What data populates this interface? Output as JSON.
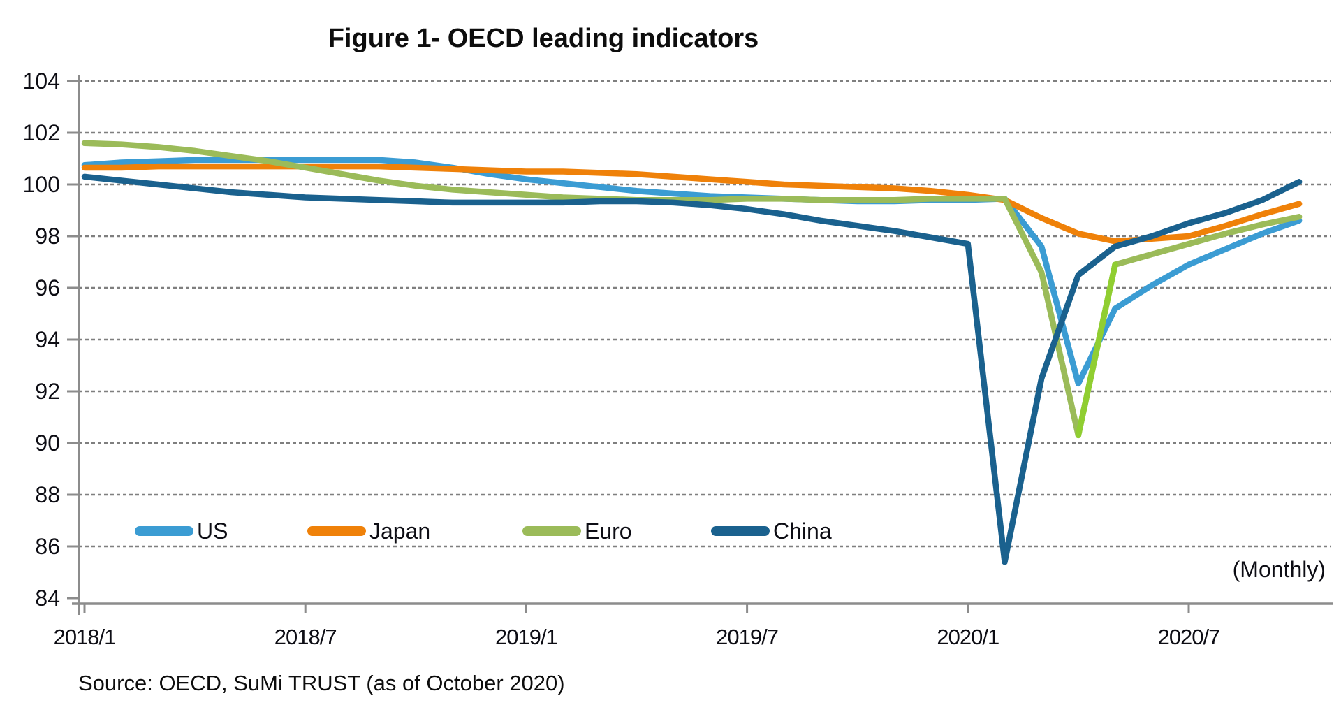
{
  "title": "Figure 1- OECD leading indicators",
  "monthly_note": "(Monthly)",
  "source": "Source: OECD, SuMi TRUST (as of October 2020)",
  "colors": {
    "axis": "#8c8c8c",
    "gridline": "#7f7f7f",
    "text": "#0d0d14",
    "us": "#3b9cd3",
    "japan": "#ef8109",
    "euro": "#9bbb59",
    "euro_recovery_segment": "#90ce31",
    "china": "#1a618e"
  },
  "chart_data": {
    "type": "line",
    "title": "Figure 1- OECD leading indicators",
    "xlabel": "",
    "ylabel": "",
    "ylim": [
      84,
      104
    ],
    "y_ticks": [
      84,
      86,
      88,
      90,
      92,
      94,
      96,
      98,
      100,
      102,
      104
    ],
    "x_tick_labels": [
      "2018/1",
      "2018/7",
      "2019/1",
      "2019/7",
      "2020/1",
      "2020/7"
    ],
    "grid": "horizontal-dashed",
    "legend_position": "inside-bottom-left",
    "x": [
      "2018/1",
      "2018/2",
      "2018/3",
      "2018/4",
      "2018/5",
      "2018/6",
      "2018/7",
      "2018/8",
      "2018/9",
      "2018/10",
      "2018/11",
      "2018/12",
      "2019/1",
      "2019/2",
      "2019/3",
      "2019/4",
      "2019/5",
      "2019/6",
      "2019/7",
      "2019/8",
      "2019/9",
      "2019/10",
      "2019/11",
      "2019/12",
      "2020/1",
      "2020/2",
      "2020/3",
      "2020/4",
      "2020/5",
      "2020/6",
      "2020/7",
      "2020/8",
      "2020/9",
      "2020/10"
    ],
    "series": [
      {
        "name": "US",
        "color": "#3b9cd3",
        "values": [
          100.75,
          100.85,
          100.9,
          100.95,
          100.95,
          100.95,
          100.95,
          100.95,
          100.95,
          100.85,
          100.65,
          100.4,
          100.2,
          100.05,
          99.9,
          99.75,
          99.65,
          99.55,
          99.5,
          99.45,
          99.4,
          99.35,
          99.35,
          99.4,
          99.4,
          99.45,
          97.6,
          92.3,
          95.2,
          96.1,
          96.9,
          97.5,
          98.1,
          98.6
        ]
      },
      {
        "name": "Japan",
        "color": "#ef8109",
        "values": [
          100.65,
          100.65,
          100.7,
          100.7,
          100.7,
          100.7,
          100.7,
          100.7,
          100.7,
          100.65,
          100.6,
          100.55,
          100.5,
          100.5,
          100.45,
          100.4,
          100.3,
          100.2,
          100.1,
          100.0,
          99.95,
          99.9,
          99.85,
          99.75,
          99.6,
          99.4,
          98.7,
          98.1,
          97.8,
          97.9,
          98.0,
          98.4,
          98.85,
          99.25
        ]
      },
      {
        "name": "Euro",
        "color": "#9bbb59",
        "recovery_segment_color": "#90ce31",
        "recovery_segment_x": [
          "2020/4",
          "2020/5"
        ],
        "values": [
          101.6,
          101.55,
          101.45,
          101.3,
          101.1,
          100.9,
          100.65,
          100.4,
          100.15,
          99.95,
          99.8,
          99.7,
          99.6,
          99.5,
          99.45,
          99.4,
          99.4,
          99.4,
          99.45,
          99.45,
          99.4,
          99.4,
          99.4,
          99.45,
          99.45,
          99.45,
          96.6,
          90.3,
          96.9,
          97.3,
          97.7,
          98.1,
          98.45,
          98.75
        ]
      },
      {
        "name": "China",
        "color": "#1a618e",
        "values": [
          100.3,
          100.15,
          100.0,
          99.85,
          99.7,
          99.6,
          99.5,
          99.45,
          99.4,
          99.35,
          99.3,
          99.3,
          99.3,
          99.3,
          99.35,
          99.35,
          99.3,
          99.2,
          99.05,
          98.85,
          98.6,
          98.4,
          98.2,
          97.95,
          97.7,
          85.4,
          92.5,
          96.5,
          97.6,
          98.0,
          98.5,
          98.9,
          99.4,
          100.1
        ]
      }
    ]
  },
  "legend": {
    "items": [
      {
        "label": "US"
      },
      {
        "label": "Japan"
      },
      {
        "label": "Euro"
      },
      {
        "label": "China"
      }
    ]
  }
}
